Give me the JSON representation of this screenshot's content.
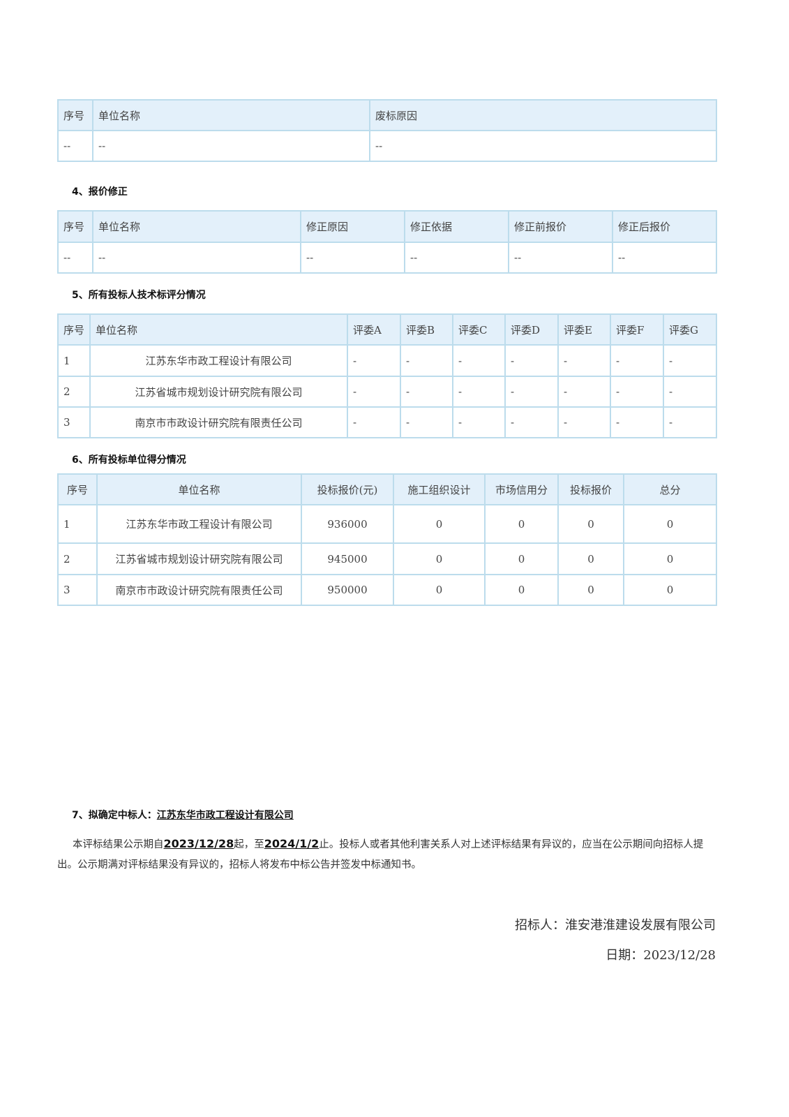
{
  "t3": {
    "headers": [
      "序号",
      "单位名称",
      "废标原因"
    ],
    "rows": [
      [
        "--",
        "--",
        "--"
      ]
    ]
  },
  "h4": "4、报价修正",
  "t4": {
    "headers": [
      "序号",
      "单位名称",
      "修正原因",
      "修正依据",
      "修正前报价",
      "修正后报价"
    ],
    "rows": [
      [
        "--",
        "--",
        "--",
        "--",
        "--",
        "--"
      ]
    ]
  },
  "h5": "5、所有投标人技术标评分情况",
  "t5": {
    "headers": [
      "序号",
      "单位名称",
      "评委A",
      "评委B",
      "评委C",
      "评委D",
      "评委E",
      "评委F",
      "评委G"
    ],
    "rows": [
      [
        "1",
        "江苏东华市政工程设计有限公司",
        "-",
        "-",
        "-",
        "-",
        "-",
        "-",
        "-"
      ],
      [
        "2",
        "江苏省城市规划设计研究院有限公司",
        "-",
        "-",
        "-",
        "-",
        "-",
        "-",
        "-"
      ],
      [
        "3",
        "南京市市政设计研究院有限责任公司",
        "-",
        "-",
        "-",
        "-",
        "-",
        "-",
        "-"
      ]
    ]
  },
  "h6": "6、所有投标单位得分情况",
  "t6": {
    "headers": [
      "序号",
      "单位名称",
      "投标报价(元)",
      "施工组织设计",
      "市场信用分",
      "投标报价",
      "总分"
    ],
    "rows": [
      [
        "1",
        "江苏东华市政工程设计有限公司",
        "936000",
        "0",
        "0",
        "0",
        "0"
      ],
      [
        "2",
        "江苏省城市规划设计研究院有限公司",
        "945000",
        "0",
        "0",
        "0",
        "0"
      ],
      [
        "3",
        "南京市市政设计研究院有限责任公司",
        "950000",
        "0",
        "0",
        "0",
        "0"
      ]
    ]
  },
  "h7": {
    "label": "7、拟确定中标人：",
    "winner": "江苏东华市政工程设计有限公司"
  },
  "notice": {
    "p1": "本评标结果公示期自",
    "start": "2023/12/28",
    "p2": "起，至",
    "end": "2024/1/2",
    "p3": "止。投标人或者其他利害关系人对上述评标结果有异议的，应当在公示期间向招标人提出。公示期满对评标结果没有异议的，招标人将发布中标公告并签发中标通知书。"
  },
  "signature": {
    "tenderer": "招标人：淮安港淮建设发展有限公司",
    "date": "日期：2023/12/28"
  }
}
